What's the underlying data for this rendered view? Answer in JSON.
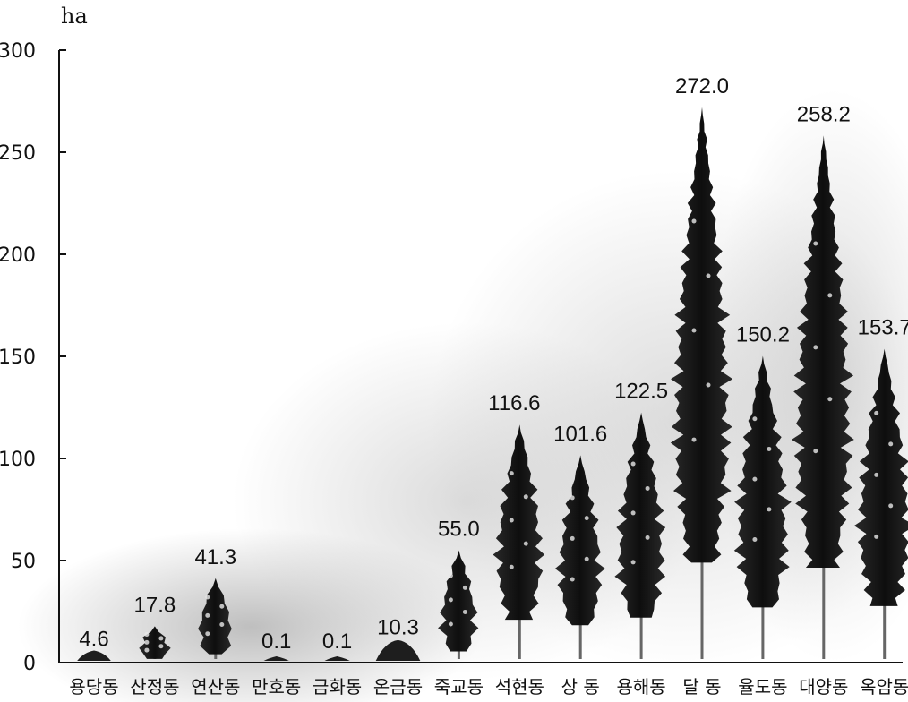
{
  "chart_data": {
    "type": "bar",
    "ylabel": "ha",
    "ylim": [
      0,
      300
    ],
    "yticks": [
      0,
      50,
      100,
      150,
      200,
      250,
      300
    ],
    "categories": [
      "용당동",
      "산정동",
      "연산동",
      "만호동",
      "금화동",
      "온금동",
      "죽교동",
      "석현동",
      "상 동",
      "용해동",
      "달 동",
      "율도동",
      "대양동",
      "옥암동"
    ],
    "values": [
      4.6,
      17.8,
      41.3,
      0.1,
      0.1,
      10.3,
      55.0,
      116.6,
      101.6,
      122.5,
      272.0,
      150.2,
      258.2,
      153.7
    ],
    "value_labels": [
      "4.6",
      "17.8",
      "41.3",
      "0.1",
      "0.1",
      "10.3",
      "55.0",
      "116.6",
      "101.6",
      "122.5",
      "272.0",
      "150.2",
      "258.2",
      "153.7"
    ],
    "colors": {
      "tree": "#1a1a1a",
      "trunk": "#666666",
      "haze": "#9a9a9a",
      "axis": "#111111"
    },
    "grid": false
  }
}
